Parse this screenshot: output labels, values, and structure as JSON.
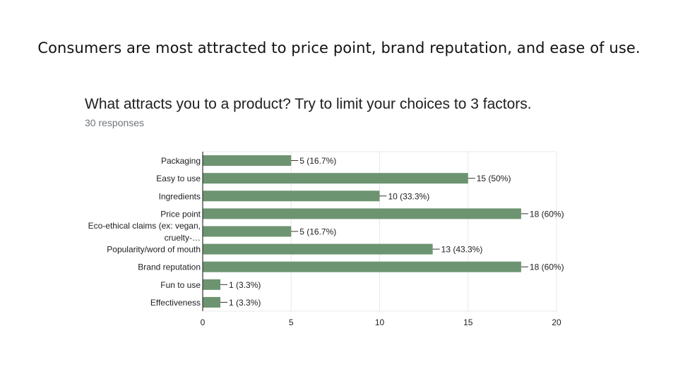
{
  "headline": "Consumers are most attracted to price point, brand reputation, and ease of use.",
  "colors": {
    "bar": "#6c9470",
    "grid": "#e8e8e8",
    "axis": "#333333",
    "text": "#202124",
    "subtle": "#70757a"
  },
  "chart_data": {
    "type": "bar",
    "orientation": "horizontal",
    "title": "What attracts you to a product? Try to limit your choices to 3 factors.",
    "subtitle": "30 responses",
    "categories": [
      [
        "Packaging"
      ],
      [
        "Easy to use"
      ],
      [
        "Ingredients"
      ],
      [
        "Price point"
      ],
      [
        "Eco-ethical claims (ex: vegan,",
        "cruelty-…"
      ],
      [
        "Popularity/word of mouth"
      ],
      [
        "Brand reputation"
      ],
      [
        "Fun to use"
      ],
      [
        "Effectiveness"
      ]
    ],
    "values": [
      5,
      15,
      10,
      18,
      5,
      13,
      18,
      1,
      1
    ],
    "data_labels": [
      "5 (16.7%)",
      "15 (50%)",
      "10 (33.3%)",
      "18 (60%)",
      "5 (16.7%)",
      "13 (43.3%)",
      "18 (60%)",
      "1 (3.3%)",
      "1 (3.3%)"
    ],
    "xlim": [
      0,
      20
    ],
    "xticks": [
      0,
      5,
      10,
      15,
      20
    ],
    "grid": true,
    "legend": "none"
  }
}
